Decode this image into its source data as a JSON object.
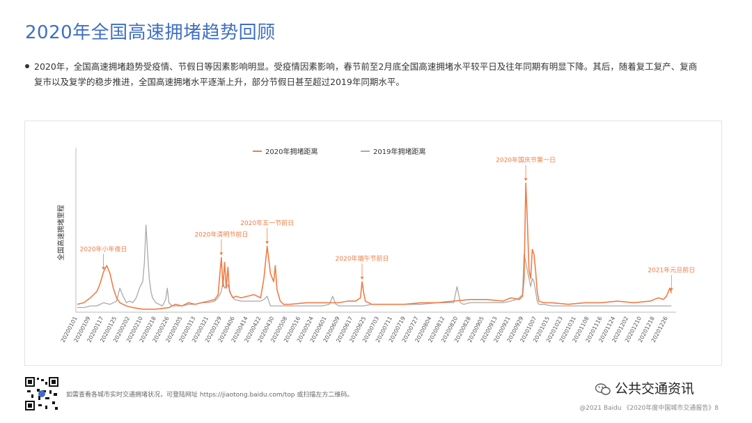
{
  "title": "2020年全国高速拥堵趋势回顾",
  "bullet_line1": "2020年，全国高速拥堵趋势受疫情、节假日等因素影响明显。受疫情因素影响，春节前至2月底全国高速拥堵水平较平日及往年同期有明显下降。其后，随着复工复产、复商",
  "bullet_line2": "复市以及复学的稳步推进，全国高速拥堵水平逐渐上升，部分节假日甚至超过2019年同期水平。",
  "footer_note": "如需查看各城市实时交通拥堵状况，可登陆网址 https://jiaotong.baidu.com/top 或扫描左方二维码。",
  "brand": "公共交通资讯",
  "copyright": "@2021 Baidu 《2020年度中国城市交通报告》8",
  "colors": {
    "series2020": "#f07c45",
    "series2019": "#a9a9a9",
    "title": "#3f6fc4"
  },
  "chart_data": {
    "type": "line",
    "ylabel": "全国高速拥堵里程",
    "xlabel": "",
    "ylim": [
      0,
      100
    ],
    "grid": false,
    "legend_position": "top-center",
    "x_tick_labels": [
      "20200101",
      "20200109",
      "20200117",
      "20200125",
      "20200202",
      "20200210",
      "20200218",
      "20200226",
      "20200305",
      "20200313",
      "20200321",
      "20200329",
      "20200406",
      "20200414",
      "20200422",
      "20200430",
      "20200508",
      "20200516",
      "20200524",
      "20200601",
      "20200609",
      "20200617",
      "20200625",
      "20200703",
      "20200711",
      "20200719",
      "20200727",
      "20200804",
      "20200812",
      "20200820",
      "20200828",
      "20200905",
      "20200913",
      "20200921",
      "20200929",
      "20201007",
      "20201015",
      "20201023",
      "20201031",
      "20201108",
      "20201116",
      "20201124",
      "20201202",
      "20201210",
      "20201218",
      "20201226"
    ],
    "series": [
      {
        "name": "2020年拥堵距离",
        "key": "s2020",
        "points": [
          [
            0,
            4
          ],
          [
            4,
            5
          ],
          [
            8,
            8
          ],
          [
            12,
            12
          ],
          [
            14,
            17
          ],
          [
            16,
            24
          ],
          [
            18,
            28
          ],
          [
            20,
            23
          ],
          [
            22,
            14
          ],
          [
            24,
            8
          ],
          [
            26,
            5
          ],
          [
            28,
            4
          ],
          [
            30,
            3
          ],
          [
            34,
            2
          ],
          [
            40,
            1
          ],
          [
            48,
            1
          ],
          [
            56,
            2
          ],
          [
            60,
            4
          ],
          [
            64,
            3
          ],
          [
            68,
            5
          ],
          [
            72,
            4
          ],
          [
            76,
            5
          ],
          [
            80,
            6
          ],
          [
            84,
            7
          ],
          [
            86,
            10
          ],
          [
            88,
            33
          ],
          [
            89,
            15
          ],
          [
            90,
            30
          ],
          [
            91,
            14
          ],
          [
            92,
            27
          ],
          [
            93,
            12
          ],
          [
            95,
            8
          ],
          [
            97,
            9
          ],
          [
            100,
            8
          ],
          [
            104,
            9
          ],
          [
            108,
            10
          ],
          [
            112,
            8
          ],
          [
            114,
            20
          ],
          [
            116,
            40
          ],
          [
            118,
            23
          ],
          [
            120,
            18
          ],
          [
            121,
            28
          ],
          [
            122,
            13
          ],
          [
            124,
            6
          ],
          [
            126,
            4
          ],
          [
            130,
            4
          ],
          [
            140,
            5
          ],
          [
            150,
            5
          ],
          [
            160,
            5
          ],
          [
            165,
            6
          ],
          [
            170,
            6
          ],
          [
            173,
            8
          ],
          [
            174,
            18
          ],
          [
            175,
            11
          ],
          [
            176,
            6
          ],
          [
            180,
            4
          ],
          [
            190,
            4
          ],
          [
            200,
            4
          ],
          [
            210,
            5
          ],
          [
            220,
            5
          ],
          [
            230,
            6
          ],
          [
            240,
            7
          ],
          [
            250,
            7
          ],
          [
            260,
            6
          ],
          [
            265,
            8
          ],
          [
            270,
            7
          ],
          [
            272,
            9
          ],
          [
            273,
            20
          ],
          [
            274,
            79
          ],
          [
            275,
            55
          ],
          [
            276,
            25
          ],
          [
            277,
            20
          ],
          [
            278,
            38
          ],
          [
            279,
            35
          ],
          [
            280,
            25
          ],
          [
            281,
            12
          ],
          [
            282,
            6
          ],
          [
            285,
            5
          ],
          [
            290,
            5
          ],
          [
            300,
            4
          ],
          [
            310,
            5
          ],
          [
            320,
            5
          ],
          [
            330,
            6
          ],
          [
            340,
            5
          ],
          [
            350,
            6
          ],
          [
            355,
            8
          ],
          [
            358,
            7
          ],
          [
            360,
            9
          ],
          [
            362,
            14
          ],
          [
            363,
            11
          ]
        ]
      },
      {
        "name": "2019年拥堵距离",
        "key": "s2019",
        "points": [
          [
            0,
            2
          ],
          [
            4,
            2
          ],
          [
            8,
            3
          ],
          [
            12,
            3
          ],
          [
            16,
            5
          ],
          [
            20,
            4
          ],
          [
            22,
            5
          ],
          [
            24,
            6
          ],
          [
            26,
            14
          ],
          [
            28,
            9
          ],
          [
            30,
            5
          ],
          [
            32,
            6
          ],
          [
            34,
            5
          ],
          [
            36,
            8
          ],
          [
            38,
            14
          ],
          [
            40,
            18
          ],
          [
            41,
            30
          ],
          [
            42,
            53
          ],
          [
            43,
            35
          ],
          [
            44,
            20
          ],
          [
            45,
            12
          ],
          [
            46,
            8
          ],
          [
            48,
            5
          ],
          [
            50,
            4
          ],
          [
            52,
            3
          ],
          [
            54,
            7
          ],
          [
            55,
            14
          ],
          [
            56,
            5
          ],
          [
            58,
            3
          ],
          [
            60,
            3
          ],
          [
            64,
            3
          ],
          [
            68,
            4
          ],
          [
            72,
            4
          ],
          [
            76,
            5
          ],
          [
            80,
            5
          ],
          [
            84,
            6
          ],
          [
            86,
            8
          ],
          [
            88,
            12
          ],
          [
            89,
            18
          ],
          [
            90,
            14
          ],
          [
            92,
            16
          ],
          [
            94,
            10
          ],
          [
            96,
            7
          ],
          [
            100,
            6
          ],
          [
            104,
            6
          ],
          [
            108,
            6
          ],
          [
            112,
            6
          ],
          [
            114,
            7
          ],
          [
            116,
            9
          ],
          [
            118,
            3
          ],
          [
            120,
            3
          ],
          [
            124,
            3
          ],
          [
            130,
            3
          ],
          [
            140,
            3
          ],
          [
            150,
            3
          ],
          [
            154,
            4
          ],
          [
            156,
            9
          ],
          [
            158,
            4
          ],
          [
            160,
            3
          ],
          [
            166,
            3
          ],
          [
            170,
            3
          ],
          [
            175,
            3
          ],
          [
            180,
            4
          ],
          [
            190,
            4
          ],
          [
            200,
            4
          ],
          [
            210,
            4
          ],
          [
            220,
            5
          ],
          [
            230,
            5
          ],
          [
            232,
            15
          ],
          [
            234,
            5
          ],
          [
            236,
            4
          ],
          [
            240,
            5
          ],
          [
            250,
            5
          ],
          [
            260,
            5
          ],
          [
            265,
            6
          ],
          [
            268,
            7
          ],
          [
            270,
            8
          ],
          [
            272,
            10
          ],
          [
            273,
            35
          ],
          [
            274,
            30
          ],
          [
            275,
            25
          ],
          [
            276,
            20
          ],
          [
            277,
            15
          ],
          [
            278,
            20
          ],
          [
            279,
            18
          ],
          [
            280,
            12
          ],
          [
            281,
            6
          ],
          [
            282,
            4
          ],
          [
            285,
            4
          ],
          [
            290,
            3
          ],
          [
            300,
            3
          ],
          [
            310,
            3
          ],
          [
            320,
            3
          ],
          [
            330,
            3
          ],
          [
            340,
            3
          ],
          [
            350,
            3
          ],
          [
            360,
            3
          ],
          [
            363,
            3
          ]
        ]
      }
    ],
    "annotations": [
      {
        "label": "2020年小年夜日",
        "x": 16
      },
      {
        "label": "2020年清明节前日",
        "x": 88
      },
      {
        "label": "2020年五一节前日",
        "x": 116
      },
      {
        "label": "2020年端午节前日",
        "x": 174
      },
      {
        "label": "2020年国庆节第一日",
        "x": 274
      },
      {
        "label": "2021年元旦前日",
        "x": 363
      }
    ]
  }
}
